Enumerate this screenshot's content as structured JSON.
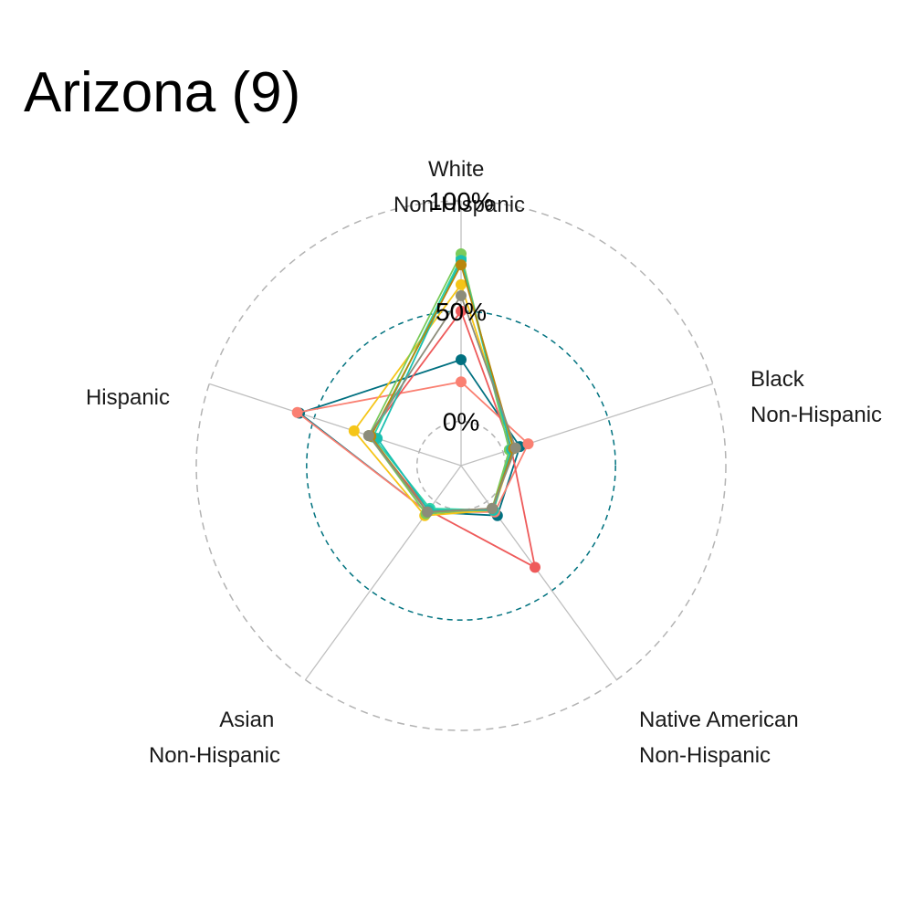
{
  "chart_data": {
    "type": "radar",
    "title": "Arizona (9)",
    "axes": [
      {
        "line1": "White",
        "line2": "Non-Hispanic"
      },
      {
        "line1": "Black",
        "line2": "Non-Hispanic"
      },
      {
        "line1": "Native American",
        "line2": "Non-Hispanic"
      },
      {
        "line1": "Asian",
        "line2": "Non-Hispanic"
      },
      {
        "line1": "Hispanic",
        "line2": ""
      }
    ],
    "grid_labels": [
      "0%",
      "50%",
      "100%"
    ],
    "rmin": -0.2,
    "rmax": 1.0,
    "grid": true,
    "legend": "none",
    "colors": {
      "grid_outer": "#b3b3b3",
      "grid_mid": "#00727f",
      "spoke": "#bfbfbf"
    },
    "series": [
      {
        "color": "#007080",
        "values": [
          0.28,
          0.08,
          0.08,
          0.06,
          0.57
        ]
      },
      {
        "color": "#FA8072",
        "values": [
          0.18,
          0.12,
          0.06,
          0.06,
          0.58
        ]
      },
      {
        "color": "#EE5A5A",
        "values": [
          0.5,
          0.04,
          0.37,
          0.05,
          0.24
        ]
      },
      {
        "color": "#F5C518",
        "values": [
          0.62,
          0.05,
          0.05,
          0.08,
          0.31
        ]
      },
      {
        "color": "#2FD3A8",
        "values": [
          0.74,
          0.03,
          0.05,
          0.04,
          0.22
        ]
      },
      {
        "color": "#7ACB5A",
        "values": [
          0.76,
          0.03,
          0.04,
          0.07,
          0.24
        ]
      },
      {
        "color": "#1ABFB0",
        "values": [
          0.73,
          0.04,
          0.05,
          0.05,
          0.2
        ]
      },
      {
        "color": "#B8860B",
        "values": [
          0.71,
          0.05,
          0.04,
          0.06,
          0.23
        ]
      },
      {
        "color": "#8C8C7A",
        "values": [
          0.57,
          0.06,
          0.04,
          0.06,
          0.24
        ]
      }
    ]
  }
}
